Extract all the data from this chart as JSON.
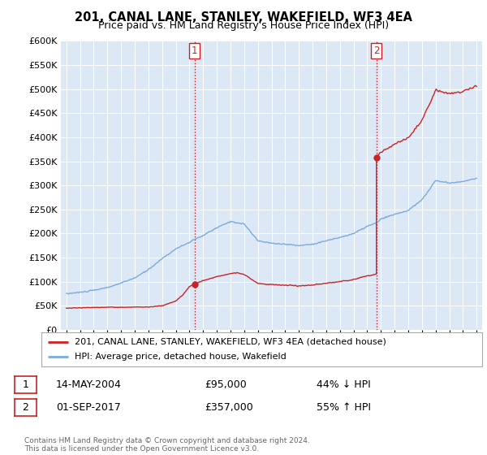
{
  "title": "201, CANAL LANE, STANLEY, WAKEFIELD, WF3 4EA",
  "subtitle": "Price paid vs. HM Land Registry's House Price Index (HPI)",
  "sale1_date": "14-MAY-2004",
  "sale1_price": 95000,
  "sale1_pct": "44% ↓ HPI",
  "sale2_date": "01-SEP-2017",
  "sale2_price": 357000,
  "sale2_pct": "55% ↑ HPI",
  "legend_red": "201, CANAL LANE, STANLEY, WAKEFIELD, WF3 4EA (detached house)",
  "legend_blue": "HPI: Average price, detached house, Wakefield",
  "footer": "Contains HM Land Registry data © Crown copyright and database right 2024.\nThis data is licensed under the Open Government Licence v3.0.",
  "sale1_x": 2004.37,
  "sale2_x": 2017.67,
  "ylim": [
    0,
    600000
  ],
  "xlim_start": 1994.6,
  "xlim_end": 2025.4,
  "plot_bg": "#dce8f5"
}
